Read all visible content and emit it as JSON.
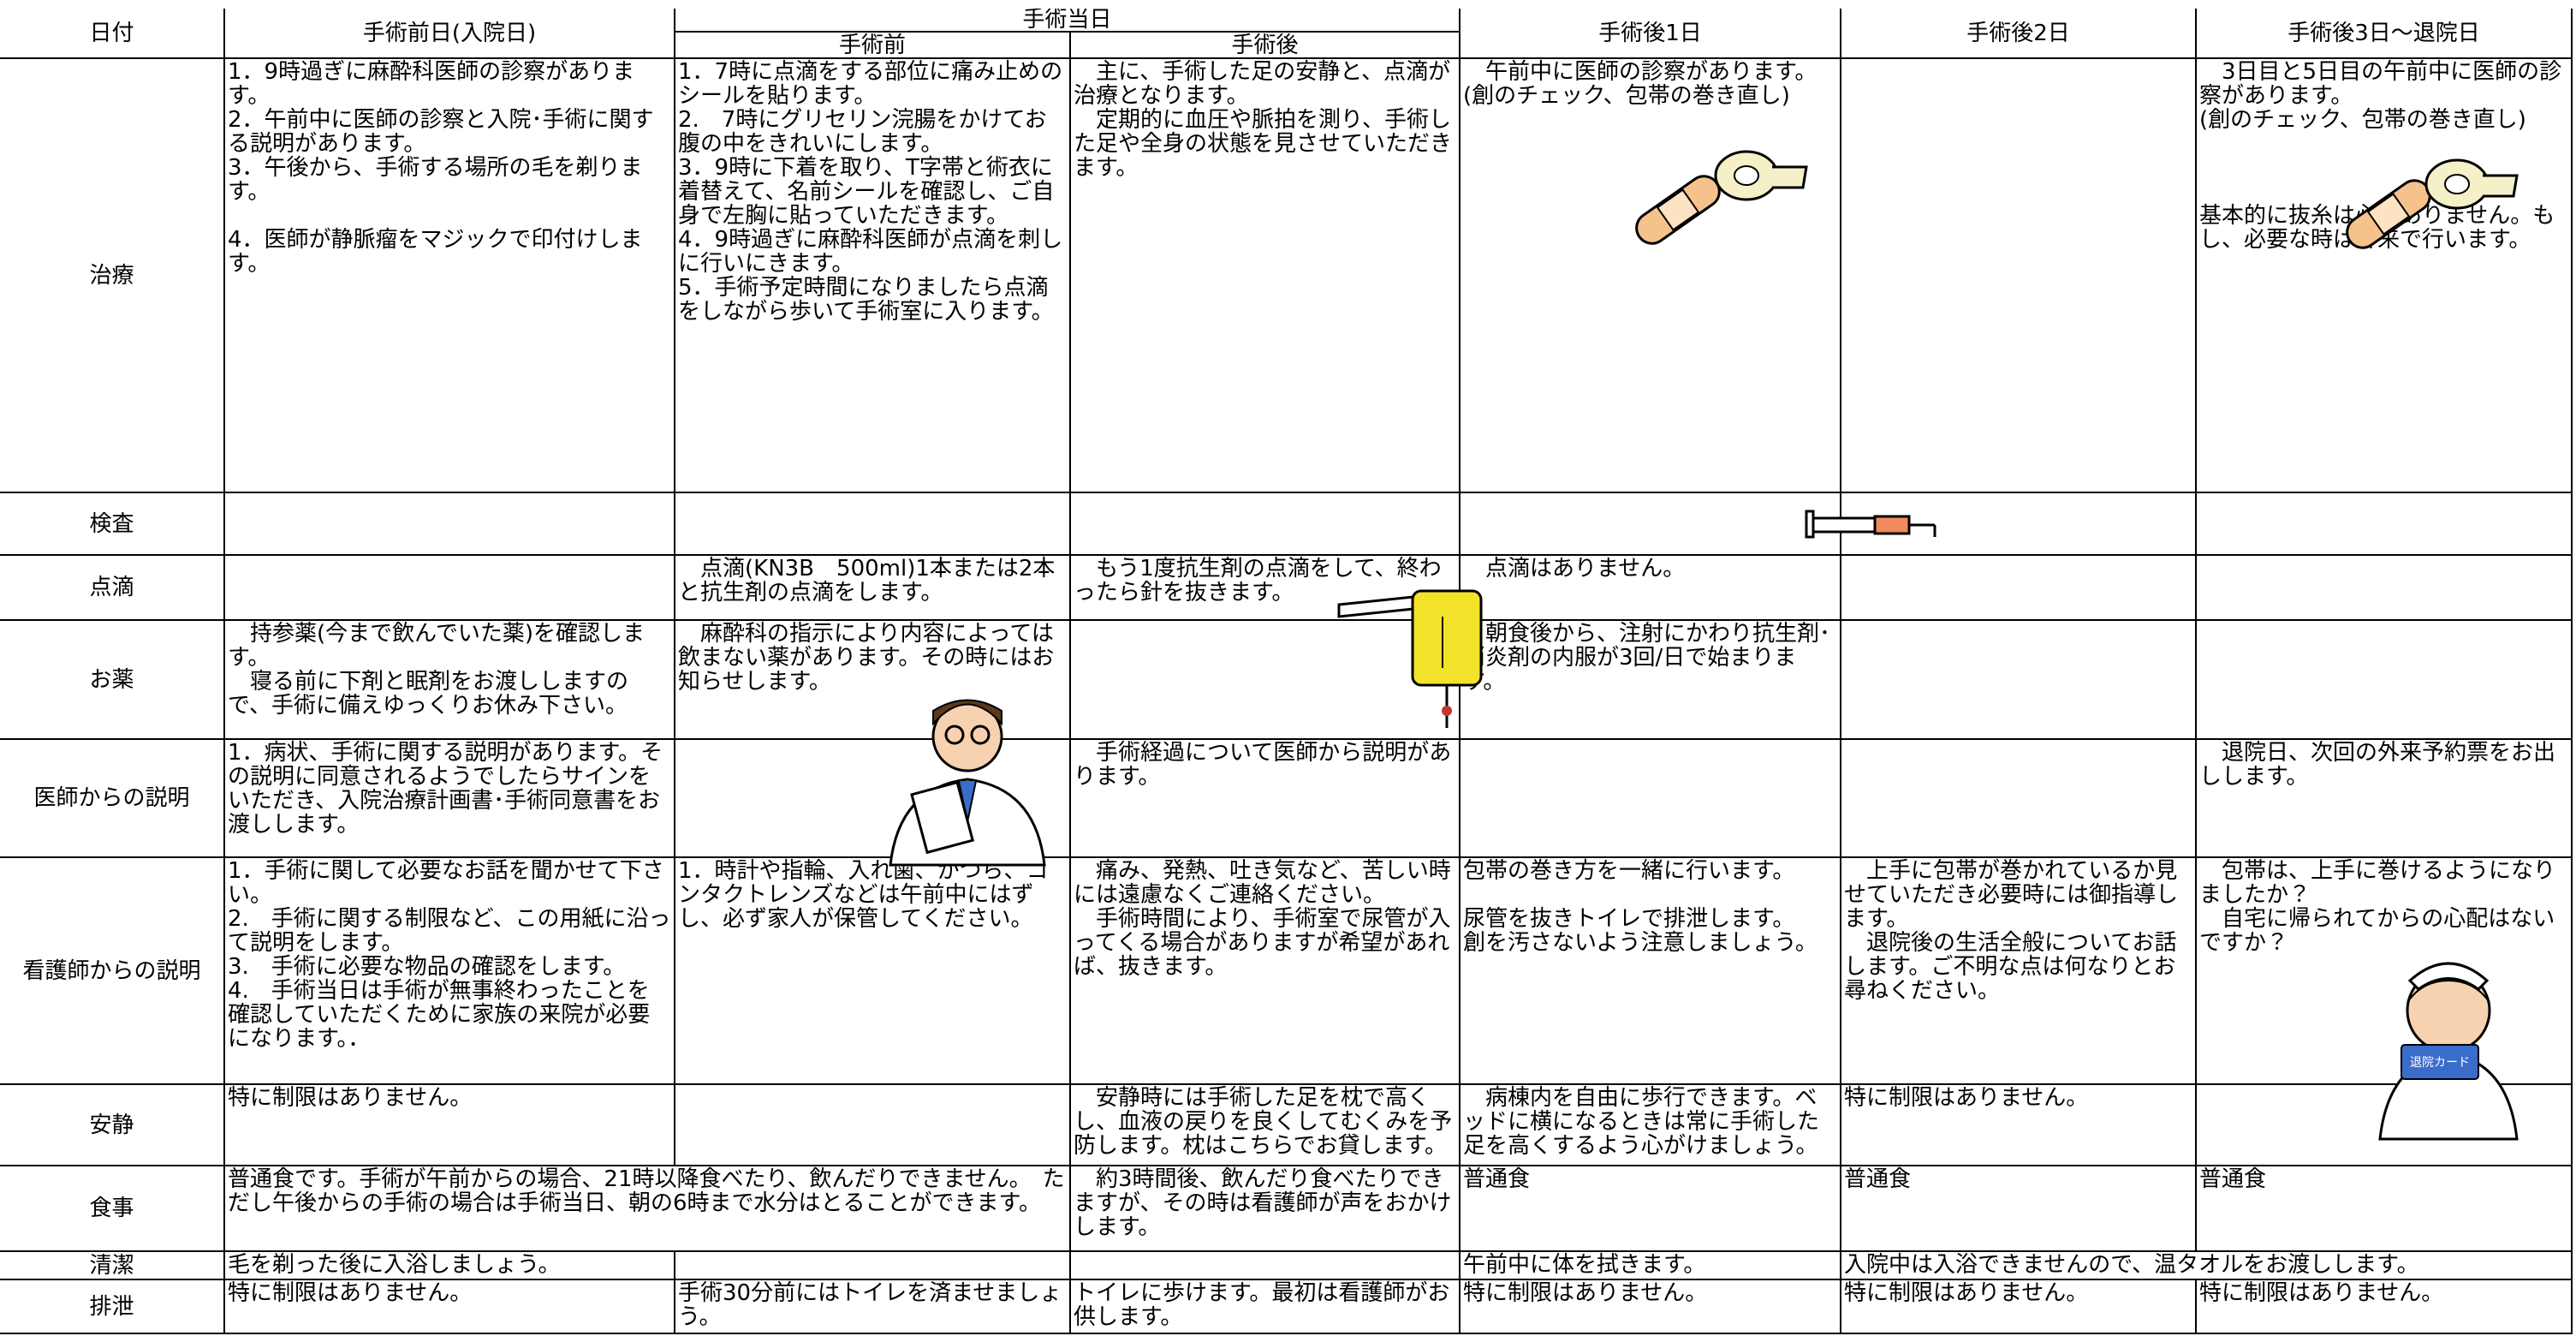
{
  "header": {
    "date_label": "日付",
    "columns": [
      "手術前日(入院日)",
      "手術当日",
      "手術前",
      "手術後",
      "手術後1日",
      "手術後2日",
      "手術後3日～退院日"
    ]
  },
  "rows": [
    {
      "label": "治療",
      "cells": [
        "1．9時過ぎに麻酔科医師の診察があります。\n2．午前中に医師の診察と入院･手術に関する説明があります。\n3．午後から、手術する場所の毛を剃ります。\n\n4．医師が静脈瘤をマジックで印付けします。",
        "1．7時に点滴をする部位に痛み止めのシールを貼ります。\n2.　7時にグリセリン浣腸をかけてお腹の中をきれいにします。\n3．9時に下着を取り、T字帯と術衣に着替えて、名前シールを確認し、ご自身で左胸に貼っていただきます。\n4．9時過ぎに麻酔科医師が点滴を刺しに行いにきます。\n5．手術予定時間になりましたら点滴をしながら歩いて手術室に入ります。",
        "　主に、手術した足の安静と、点滴が治療となります。\n　定期的に血圧や脈拍を測り、手術した足や全身の状態を見させていただきます。",
        "　午前中に医師の診察があります。\n(創のチェック、包帯の巻き直し)",
        null,
        "　3日目と5日目の午前中に医師の診察があります。\n(創のチェック、包帯の巻き直し)\n\n\n\n基本的に抜糸は必要ありません。もし、必要な時は外来で行います。"
      ]
    },
    {
      "label": "検査",
      "cells": [
        null,
        null,
        null,
        null,
        null,
        null
      ]
    },
    {
      "label": "点滴",
      "cells": [
        null,
        "　点滴(KN3B　500ml)1本または2本と抗生剤の点滴をします。",
        "　もう1度抗生剤の点滴をして、終わったら針を抜きます。",
        "　点滴はありません。",
        null,
        null
      ]
    },
    {
      "label": "お薬",
      "cells": [
        "　持参薬(今まで飲んでいた薬)を確認します。\n　寝る前に下剤と眠剤をお渡ししますので、手術に備えゆっくりお休み下さい。",
        "　麻酔科の指示により内容によっては飲まない薬があります。その時にはお知らせします。",
        null,
        "　朝食後から、注射にかわり抗生剤･消炎剤の内服が3回/日で始まります。",
        null,
        null
      ]
    },
    {
      "label": "医師からの説明",
      "cells": [
        "1．病状、手術に関する説明があります。その説明に同意されるようでしたらサインをいただき、入院治療計画書･手術同意書をお渡しします。",
        null,
        "　手術経過について医師から説明があります。",
        null,
        null,
        "　退院日、次回の外来予約票をお出しします。"
      ]
    },
    {
      "label": "看護師からの説明",
      "cells": [
        "1．手術に関して必要なお話を聞かせて下さい。\n2.　手術に関する制限など、この用紙に沿って説明をします。\n3.　手術に必要な物品の確認をします。\n4.　手術当日は手術が無事終わったことを確認していただくために家族の来院が必要になります。．",
        "1．時計や指輪、入れ歯、かつら、コンタクトレンズなどは午前中にはずし、必ず家人が保管してください。",
        "　痛み、発熱、吐き気など、苦しい時には遠慮なくご連絡ください。\n　手術時間により、手術室で尿管が入ってくる場合がありますが希望があれば、抜きます。",
        "包帯の巻き方を一緒に行います。\n\n尿管を抜きトイレで排泄します。\n創を汚さないよう注意しましょう。",
        "　上手に包帯が巻かれているか見せていただき必要時には御指導します。\n　退院後の生活全般についてお話します。ご不明な点は何なりとお尋ねください。",
        "　包帯は、上手に巻けるようになりましたか？\n　自宅に帰られてからの心配はないですか？"
      ]
    },
    {
      "label": "安静",
      "cells": [
        "特に制限はありません。",
        null,
        "　安静時には手術した足を枕で高くし、血液の戻りを良くしてむくみを予防します。枕はこちらでお貸します。",
        "　病棟内を自由に歩行できます。ベッドに横になるときは常に手術した足を高くするよう心がけましょう。",
        "特に制限はありません。",
        null
      ]
    },
    {
      "label": "食事",
      "cells": [
        "普通食です。手術が午前からの場合、21時以降食べたり、飲んだりできません。　ただし午後からの手術の場合は手術当日、朝の6時まで水分はとることができます。",
        "　約3時間後、飲んだり食べたりできますが、その時は看護師が声をおかけします。",
        "普通食",
        "普通食",
        "普通食"
      ]
    },
    {
      "label": "清潔",
      "cells": [
        "毛を剃った後に入浴しましょう。",
        null,
        null,
        "午前中に体を拭きます。",
        "入院中は入浴できませんので、温タオルをお渡しします。"
      ]
    },
    {
      "label": "排泄",
      "cells": [
        "特に制限はありません。",
        "手術30分前にはトイレを済ませましょう。",
        "トイレに歩けます。最初は看護師がお供します。",
        "特に制限はありません。",
        "特に制限はありません。",
        "特に制限はありません。"
      ]
    }
  ],
  "nurse_card": "退院カード"
}
